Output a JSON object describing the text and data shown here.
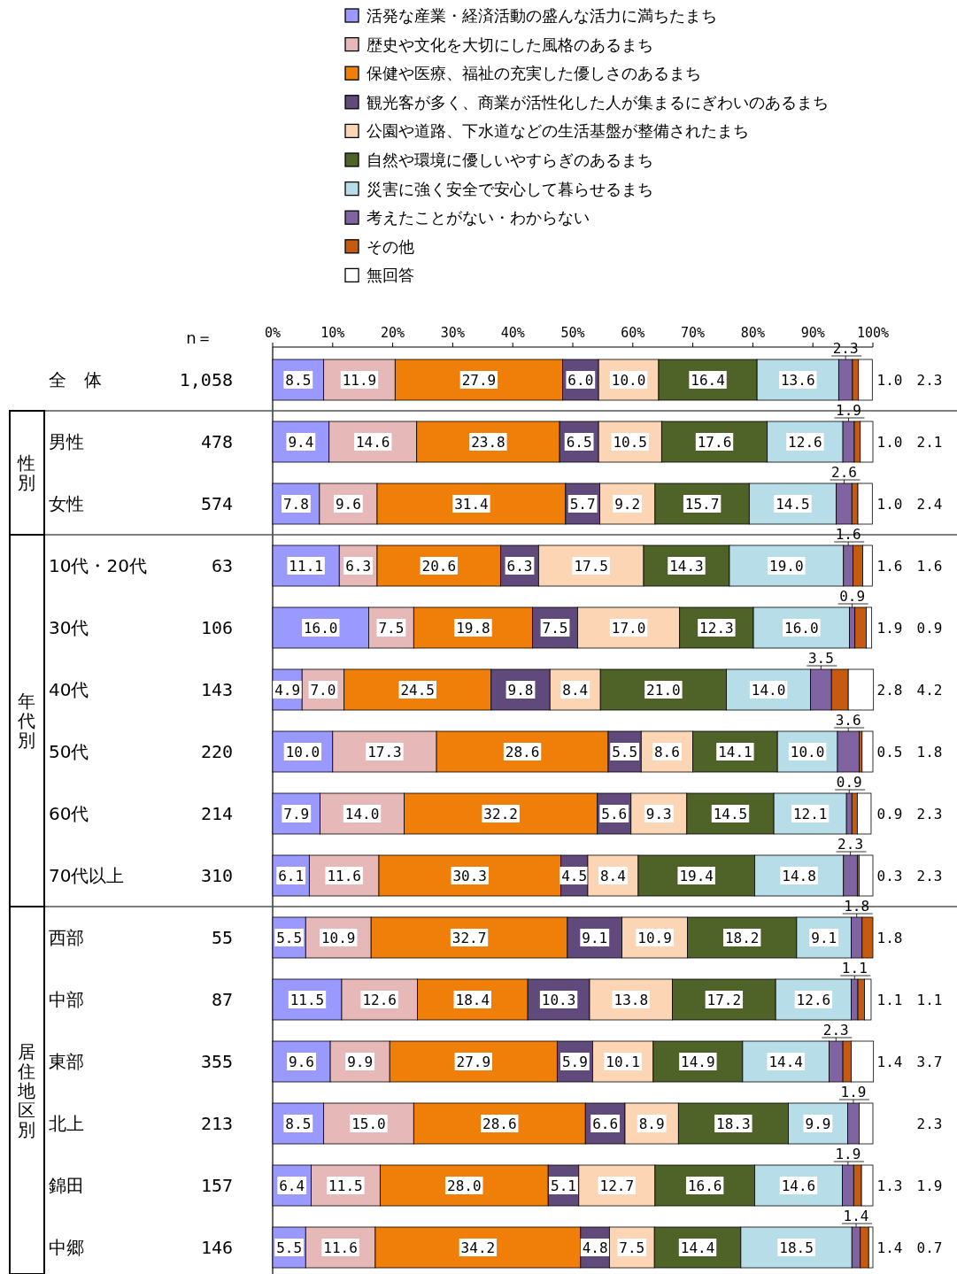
{
  "chart_data": {
    "type": "bar",
    "orientation": "horizontal",
    "stacked": true,
    "legend": "top",
    "grid": false,
    "categories": [
      "全　体",
      "男性",
      "女性",
      "10代・20代",
      "30代",
      "40代",
      "50代",
      "60代",
      "70代以上",
      "西部",
      "中部",
      "東部",
      "北上",
      "錦田",
      "中郷"
    ],
    "y2_categories": [
      "1,058",
      "478",
      "574",
      "63",
      "106",
      "143",
      "220",
      "214",
      "310",
      "55",
      "87",
      "355",
      "213",
      "157",
      "146"
    ],
    "annotations": [
      "n＝",
      "性別",
      "年代別",
      "居住地区別"
    ],
    "xlim": [
      0,
      100
    ],
    "xticks": [
      {
        "value": 0,
        "label": "0%"
      },
      {
        "value": 10,
        "label": "10%"
      },
      {
        "value": 20,
        "label": "20%"
      },
      {
        "value": 30,
        "label": "30%"
      },
      {
        "value": 40,
        "label": "40%"
      },
      {
        "value": 50,
        "label": "50%"
      },
      {
        "value": 60,
        "label": "60%"
      },
      {
        "value": 70,
        "label": "70%"
      },
      {
        "value": 80,
        "label": "80%"
      },
      {
        "value": 90,
        "label": "90%"
      },
      {
        "value": 100,
        "label": "100%"
      }
    ],
    "series": [
      {
        "name": "活発な産業・経済活動の盛んな活力に満ちたまち",
        "color": "#9999ff",
        "values": [
          8.5,
          9.4,
          7.8,
          11.1,
          16.0,
          4.9,
          10.0,
          7.9,
          6.1,
          5.5,
          11.5,
          9.6,
          8.5,
          6.4,
          5.5
        ],
        "value_labels": [
          "8.5",
          "9.4",
          "7.8",
          "11.1",
          "16.0",
          "4.9",
          "10.0",
          "7.9",
          "6.1",
          "5.5",
          "11.5",
          "9.6",
          "8.5",
          "6.4",
          "5.5"
        ]
      },
      {
        "name": "歴史や文化を大切にした風格のあるまち",
        "color": "#e6b8b7",
        "values": [
          11.9,
          14.6,
          9.6,
          6.3,
          7.5,
          7.0,
          17.3,
          14.0,
          11.6,
          10.9,
          12.6,
          9.9,
          15.0,
          11.5,
          11.6
        ],
        "value_labels": [
          "11.9",
          "14.6",
          "9.6",
          "6.3",
          "7.5",
          "7.0",
          "17.3",
          "14.0",
          "11.6",
          "10.9",
          "12.6",
          "9.9",
          "15.0",
          "11.5",
          "11.6"
        ]
      },
      {
        "name": "保健や医療、福祉の充実した優しさのあるまち",
        "color": "#f07f09",
        "values": [
          27.9,
          23.8,
          31.4,
          20.6,
          19.8,
          24.5,
          28.6,
          32.2,
          30.3,
          32.7,
          18.4,
          27.9,
          28.6,
          28.0,
          34.2
        ],
        "value_labels": [
          "27.9",
          "23.8",
          "31.4",
          "20.6",
          "19.8",
          "24.5",
          "28.6",
          "32.2",
          "30.3",
          "32.7",
          "18.4",
          "27.9",
          "28.6",
          "28.0",
          "34.2"
        ]
      },
      {
        "name": "観光客が多く、商業が活性化した人が集まるにぎわいのあるまち",
        "color": "#604a7b",
        "values": [
          6.0,
          6.5,
          5.7,
          6.3,
          7.5,
          9.8,
          5.5,
          5.6,
          4.5,
          9.1,
          10.3,
          5.9,
          6.6,
          5.1,
          4.8
        ],
        "value_labels": [
          "6.0",
          "6.5",
          "5.7",
          "6.3",
          "7.5",
          "9.8",
          "5.5",
          "5.6",
          "4.5",
          "9.1",
          "10.3",
          "5.9",
          "6.6",
          "5.1",
          "4.8"
        ]
      },
      {
        "name": "公園や道路、下水道などの生活基盤が整備されたまち",
        "color": "#fcd5b4",
        "values": [
          10.0,
          10.5,
          9.2,
          17.5,
          17.0,
          8.4,
          8.6,
          9.3,
          8.4,
          10.9,
          13.8,
          10.1,
          8.9,
          12.7,
          7.5
        ],
        "value_labels": [
          "10.0",
          "10.5",
          "9.2",
          "17.5",
          "17.0",
          "8.4",
          "8.6",
          "9.3",
          "8.4",
          "10.9",
          "13.8",
          "10.1",
          "8.9",
          "12.7",
          "7.5"
        ]
      },
      {
        "name": "自然や環境に優しいやすらぎのあるまち",
        "color": "#4f6228",
        "values": [
          16.4,
          17.6,
          15.7,
          14.3,
          12.3,
          21.0,
          14.1,
          14.5,
          19.4,
          18.2,
          17.2,
          14.9,
          18.3,
          16.6,
          14.4
        ],
        "value_labels": [
          "16.4",
          "17.6",
          "15.7",
          "14.3",
          "12.3",
          "21.0",
          "14.1",
          "14.5",
          "19.4",
          "18.2",
          "17.2",
          "14.9",
          "18.3",
          "16.6",
          "14.4"
        ]
      },
      {
        "name": "災害に強く安全で安心して暮らせるまち",
        "color": "#b7dee8",
        "values": [
          13.6,
          12.6,
          14.5,
          19.0,
          16.0,
          14.0,
          10.0,
          12.1,
          14.8,
          9.1,
          12.6,
          14.4,
          9.9,
          14.6,
          18.5
        ],
        "value_labels": [
          "13.6",
          "12.6",
          "14.5",
          "19.0",
          "16.0",
          "14.0",
          "10.0",
          "12.1",
          "14.8",
          "9.1",
          "12.6",
          "14.4",
          "9.9",
          "14.6",
          "18.5"
        ]
      },
      {
        "name": "考えたことがない・わからない",
        "color": "#8064a2",
        "values": [
          2.3,
          1.9,
          2.6,
          1.6,
          0.9,
          3.5,
          3.6,
          0.9,
          2.3,
          1.8,
          1.1,
          2.3,
          1.9,
          1.9,
          1.4
        ],
        "value_labels": [
          "2.3",
          "1.9",
          "2.6",
          "1.6",
          "0.9",
          "3.5",
          "3.6",
          "0.9",
          "2.3",
          "1.8",
          "1.1",
          "2.3",
          "1.9",
          "1.9",
          "1.4"
        ]
      },
      {
        "name": "その他",
        "color": "#c55a11",
        "values": [
          1.0,
          1.0,
          1.0,
          1.6,
          1.9,
          2.8,
          0.5,
          0.9,
          0.3,
          1.8,
          1.1,
          1.4,
          null,
          1.3,
          1.4
        ],
        "value_labels": [
          "1.0",
          "1.0",
          "1.0",
          "1.6",
          "1.9",
          "2.8",
          "0.5",
          "0.9",
          "0.3",
          "1.8",
          "1.1",
          "1.4",
          null,
          "1.3",
          "1.4"
        ]
      },
      {
        "name": "無回答",
        "color": "#ffffff",
        "values": [
          2.3,
          2.1,
          2.4,
          1.6,
          0.9,
          4.2,
          1.8,
          2.3,
          2.3,
          null,
          1.1,
          3.7,
          2.3,
          1.9,
          0.7
        ],
        "value_labels": [
          "2.3",
          "2.1",
          "2.4",
          "1.6",
          "0.9",
          "4.2",
          "1.8",
          "2.3",
          "2.3",
          null,
          "1.1",
          "3.7",
          "2.3",
          "1.9",
          "0.7"
        ]
      }
    ]
  }
}
